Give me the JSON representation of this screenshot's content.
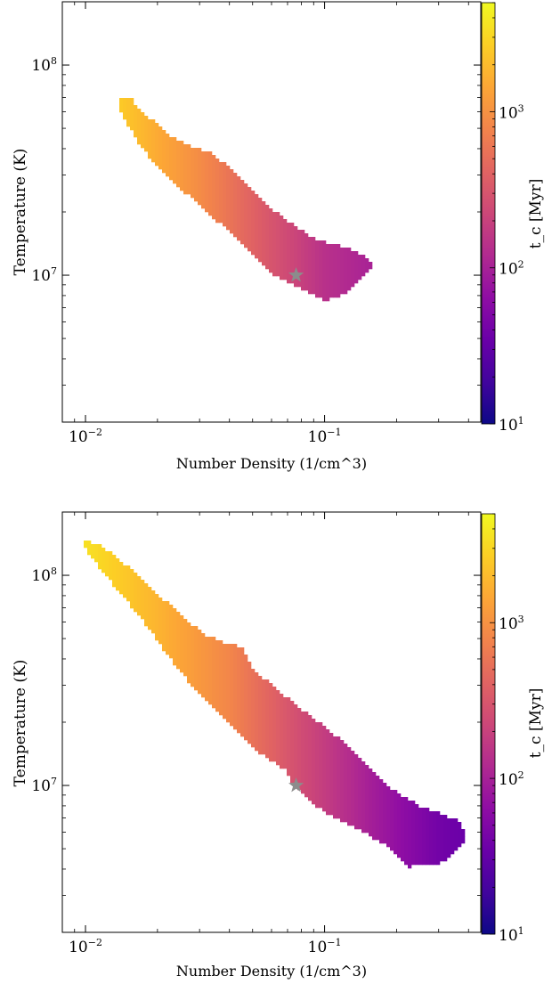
{
  "colorbar": {
    "label": "t_c  [Myr]",
    "scale": "log",
    "range": [
      10,
      5000
    ],
    "colormap": "plasma",
    "tick_labels": [
      "10^1",
      "10^2",
      "10^3"
    ]
  },
  "colors": {
    "marker": "#8c8c8c",
    "axes": "#000000"
  },
  "chart_data": [
    {
      "type": "heatmap",
      "xlabel": "Number Density  (1/cm^3)",
      "ylabel": "Temperature  (K)",
      "xscale": "log",
      "yscale": "log",
      "xlim": [
        0.008,
        0.45
      ],
      "ylim": [
        2000000,
        200000000
      ],
      "x_tick_labels": [
        "10^-2",
        "10^-1"
      ],
      "y_tick_labels": [
        "10^7",
        "10^8"
      ],
      "grid": false,
      "colormap": "plasma",
      "color_scale": "log",
      "color_range": [
        10,
        5000
      ],
      "star_marker": {
        "x": 0.076,
        "y": 10000000
      },
      "outline": [
        [
          0.0138,
          71000000
        ],
        [
          0.0155,
          69000000
        ],
        [
          0.018,
          58000000
        ],
        [
          0.022,
          47000000
        ],
        [
          0.028,
          41000000
        ],
        [
          0.034,
          38000000
        ],
        [
          0.042,
          31000000
        ],
        [
          0.052,
          24000000
        ],
        [
          0.07,
          18000000
        ],
        [
          0.09,
          15000000
        ],
        [
          0.11,
          14000000
        ],
        [
          0.135,
          13000000
        ],
        [
          0.155,
          12000000
        ],
        [
          0.157,
          11000000
        ],
        [
          0.14,
          9500000
        ],
        [
          0.118,
          8000000
        ],
        [
          0.1,
          7600000
        ],
        [
          0.09,
          8000000
        ],
        [
          0.075,
          9000000
        ],
        [
          0.062,
          10000000
        ],
        [
          0.052,
          12000000
        ],
        [
          0.045,
          14000000
        ],
        [
          0.038,
          17000000
        ],
        [
          0.032,
          20000000
        ],
        [
          0.027,
          24000000
        ],
        [
          0.023,
          28000000
        ],
        [
          0.02,
          33000000
        ],
        [
          0.017,
          41000000
        ],
        [
          0.015,
          52000000
        ],
        [
          0.0138,
          62000000
        ]
      ],
      "color_anchors": [
        {
          "x": 0.014,
          "t_c": 2500
        },
        {
          "x": 0.03,
          "t_c": 900
        },
        {
          "x": 0.06,
          "t_c": 300
        },
        {
          "x": 0.1,
          "t_c": 140
        },
        {
          "x": 0.16,
          "t_c": 100
        }
      ]
    },
    {
      "type": "heatmap",
      "xlabel": "Number Density  (1/cm^3)",
      "ylabel": "Temperature  (K)",
      "xscale": "log",
      "yscale": "log",
      "xlim": [
        0.008,
        0.45
      ],
      "ylim": [
        2000000,
        200000000
      ],
      "x_tick_labels": [
        "10^-2",
        "10^-1"
      ],
      "y_tick_labels": [
        "10^7",
        "10^8"
      ],
      "grid": false,
      "colormap": "plasma",
      "color_scale": "log",
      "color_range": [
        10,
        5000
      ],
      "star_marker": {
        "x": 0.076,
        "y": 10000000
      },
      "outline": [
        [
          0.0098,
          150000000
        ],
        [
          0.012,
          135000000
        ],
        [
          0.015,
          110000000
        ],
        [
          0.02,
          82000000
        ],
        [
          0.026,
          62000000
        ],
        [
          0.032,
          52000000
        ],
        [
          0.04,
          47000000
        ],
        [
          0.045,
          46000000
        ],
        [
          0.05,
          36000000
        ],
        [
          0.07,
          26000000
        ],
        [
          0.1,
          19000000
        ],
        [
          0.13,
          15000000
        ],
        [
          0.18,
          10000000
        ],
        [
          0.25,
          8000000
        ],
        [
          0.32,
          7200000
        ],
        [
          0.37,
          6800000
        ],
        [
          0.39,
          5500000
        ],
        [
          0.34,
          4700000
        ],
        [
          0.3,
          4200000
        ],
        [
          0.22,
          4100000
        ],
        [
          0.19,
          5000000
        ],
        [
          0.14,
          6200000
        ],
        [
          0.1,
          7500000
        ],
        [
          0.085,
          8500000
        ],
        [
          0.075,
          10000000
        ],
        [
          0.068,
          12000000
        ],
        [
          0.055,
          14000000
        ],
        [
          0.045,
          17000000
        ],
        [
          0.036,
          22000000
        ],
        [
          0.03,
          27000000
        ],
        [
          0.026,
          33000000
        ],
        [
          0.022,
          42000000
        ],
        [
          0.018,
          58000000
        ],
        [
          0.014,
          82000000
        ],
        [
          0.011,
          115000000
        ],
        [
          0.0098,
          140000000
        ]
      ],
      "color_anchors": [
        {
          "x": 0.01,
          "t_c": 3500
        },
        {
          "x": 0.02,
          "t_c": 1800
        },
        {
          "x": 0.04,
          "t_c": 800
        },
        {
          "x": 0.08,
          "t_c": 250
        },
        {
          "x": 0.15,
          "t_c": 100
        },
        {
          "x": 0.3,
          "t_c": 40
        },
        {
          "x": 0.38,
          "t_c": 35
        }
      ]
    }
  ]
}
